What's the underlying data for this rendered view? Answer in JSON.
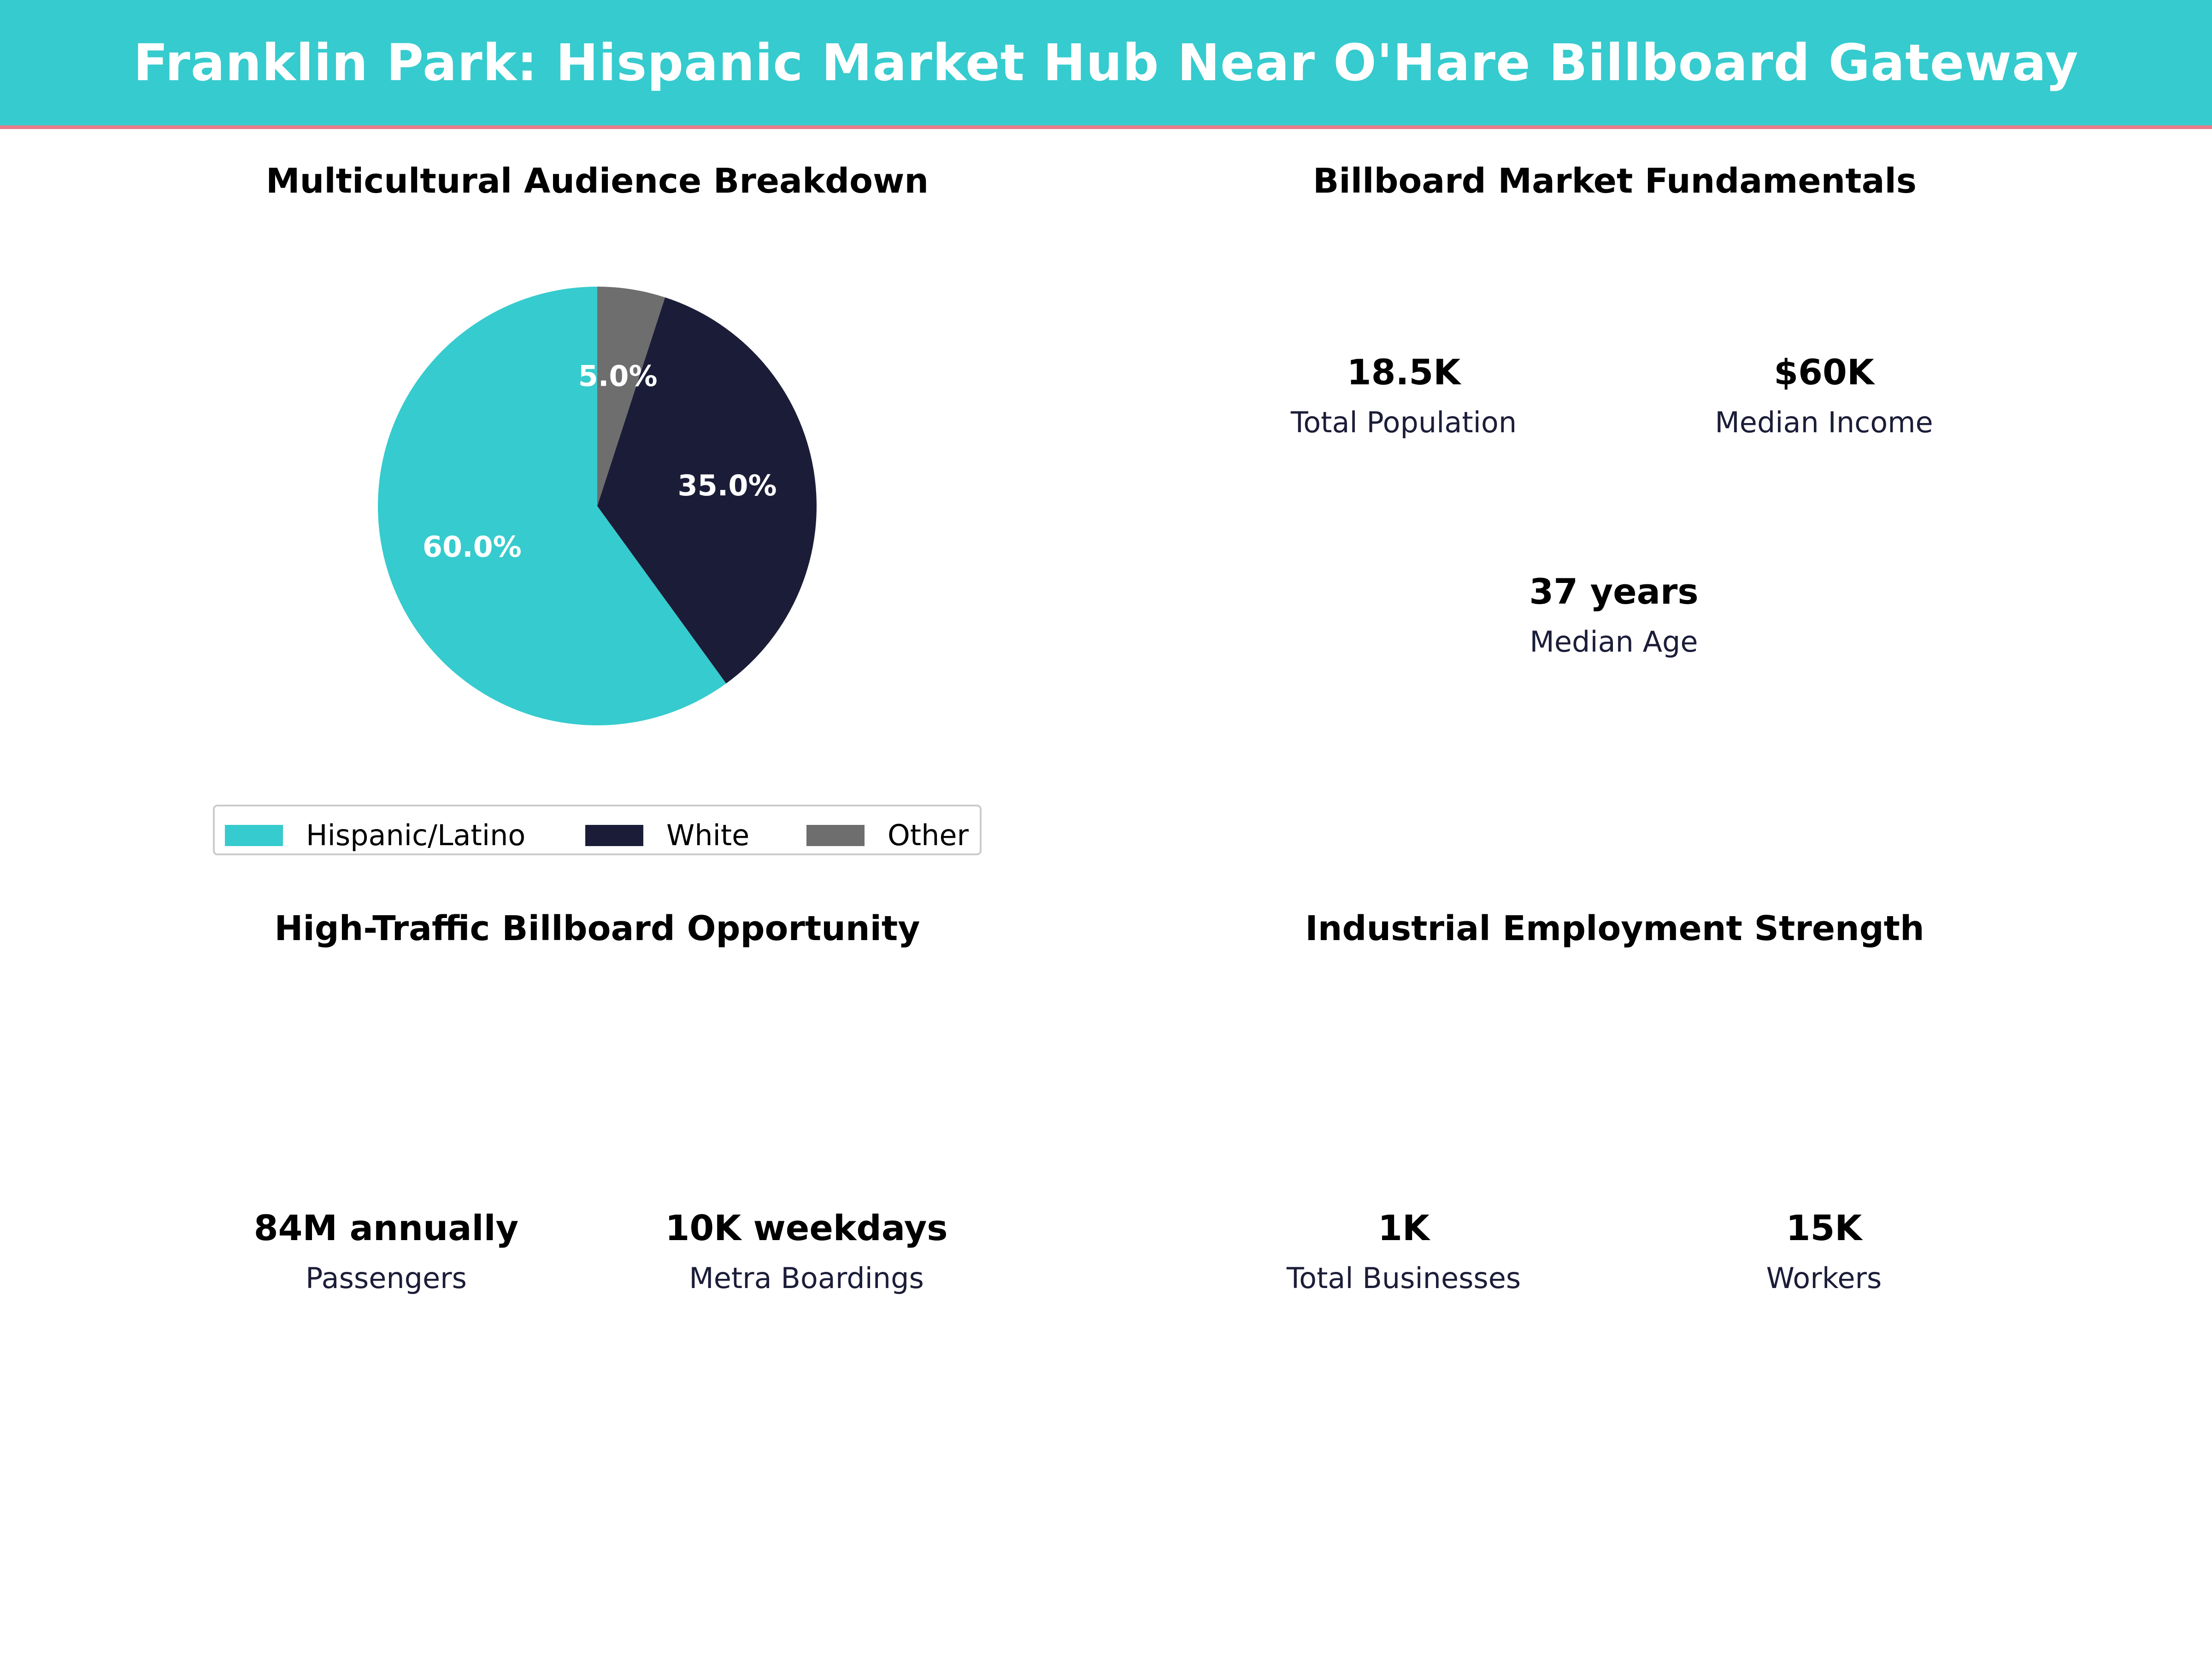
{
  "header": {
    "title": "Franklin Park: Hispanic Market Hub Near O'Hare Billboard Gateway"
  },
  "panels": {
    "audience": {
      "title": "Multicultural Audience Breakdown"
    },
    "fundamentals": {
      "title": "Billboard Market Fundamentals",
      "cards": [
        {
          "value": "18.5K",
          "label": "Total Population",
          "style": "teal"
        },
        {
          "value": "$60K",
          "label": "Median Income",
          "style": "navy"
        },
        {
          "value": "37 years",
          "label": "Median Age",
          "style": "grey"
        }
      ]
    },
    "traffic": {
      "title": "High-Traffic Billboard Opportunity",
      "cards": [
        {
          "value": "84M annually",
          "label": "Passengers",
          "style": "teal"
        },
        {
          "value": "10K weekdays",
          "label": "Metra Boardings",
          "style": "navy"
        }
      ]
    },
    "employment": {
      "title": "Industrial Employment Strength",
      "cards": [
        {
          "value": "1K",
          "label": "Total Businesses",
          "style": "teal"
        },
        {
          "value": "15K",
          "label": "Workers",
          "style": "navy"
        }
      ]
    }
  },
  "colors": {
    "teal": "#36CBCE",
    "navy": "#1B1D38",
    "grey": "#6E6E6E",
    "accent_line": "#E67C8A"
  },
  "chart_data": {
    "type": "pie",
    "title": "Multicultural Audience Breakdown",
    "categories": [
      "Hispanic/Latino",
      "White",
      "Other"
    ],
    "values": [
      60.0,
      35.0,
      5.0
    ],
    "value_labels": [
      "60.0%",
      "35.0%",
      "5.0%"
    ],
    "colors": [
      "#36CBCE",
      "#1B1D38",
      "#6E6E6E"
    ],
    "legend": [
      "Hispanic/Latino",
      "White",
      "Other"
    ],
    "legend_placement": "bottom"
  }
}
